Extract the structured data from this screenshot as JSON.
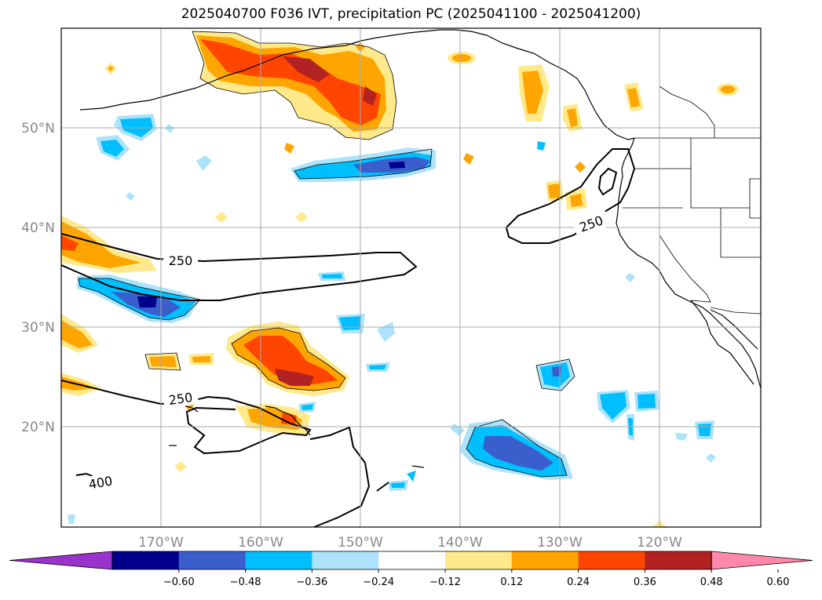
{
  "title": "2025040700 F036 IVT, precipitation PC (2025041100 - 2025041200)",
  "map": {
    "projection": "PlateCarree",
    "lon_range": [
      -180,
      -110
    ],
    "lat_range": [
      10,
      60
    ],
    "lat_ticks": [
      "50°N",
      "40°N",
      "30°N",
      "20°N"
    ],
    "lon_ticks": [
      "170°W",
      "160°W",
      "150°W",
      "140°W",
      "130°W",
      "120°W"
    ],
    "contour_labels": [
      "250",
      "250",
      "250",
      "400"
    ],
    "gridlines": true
  },
  "colorbar": {
    "ticks": [
      "−0.60",
      "−0.48",
      "−0.36",
      "−0.24",
      "−0.12",
      "0.12",
      "0.24",
      "0.36",
      "0.48",
      "0.60"
    ],
    "colors": [
      "#9933cc",
      "#00008b",
      "#3a5fcd",
      "#00bfff",
      "#ade3fa",
      "#ffffff",
      "#ffe98a",
      "#ffa500",
      "#ff4500",
      "#b22222",
      "#ff88aa"
    ]
  },
  "colors": {
    "neg_light": "#ade3fa",
    "neg_mid": "#00bfff",
    "neg_strong": "#3a5fcd",
    "neg_max": "#00008b",
    "pos_light": "#ffe98a",
    "pos_mid": "#ffa500",
    "pos_strong": "#ff4500",
    "pos_max": "#b22222"
  }
}
